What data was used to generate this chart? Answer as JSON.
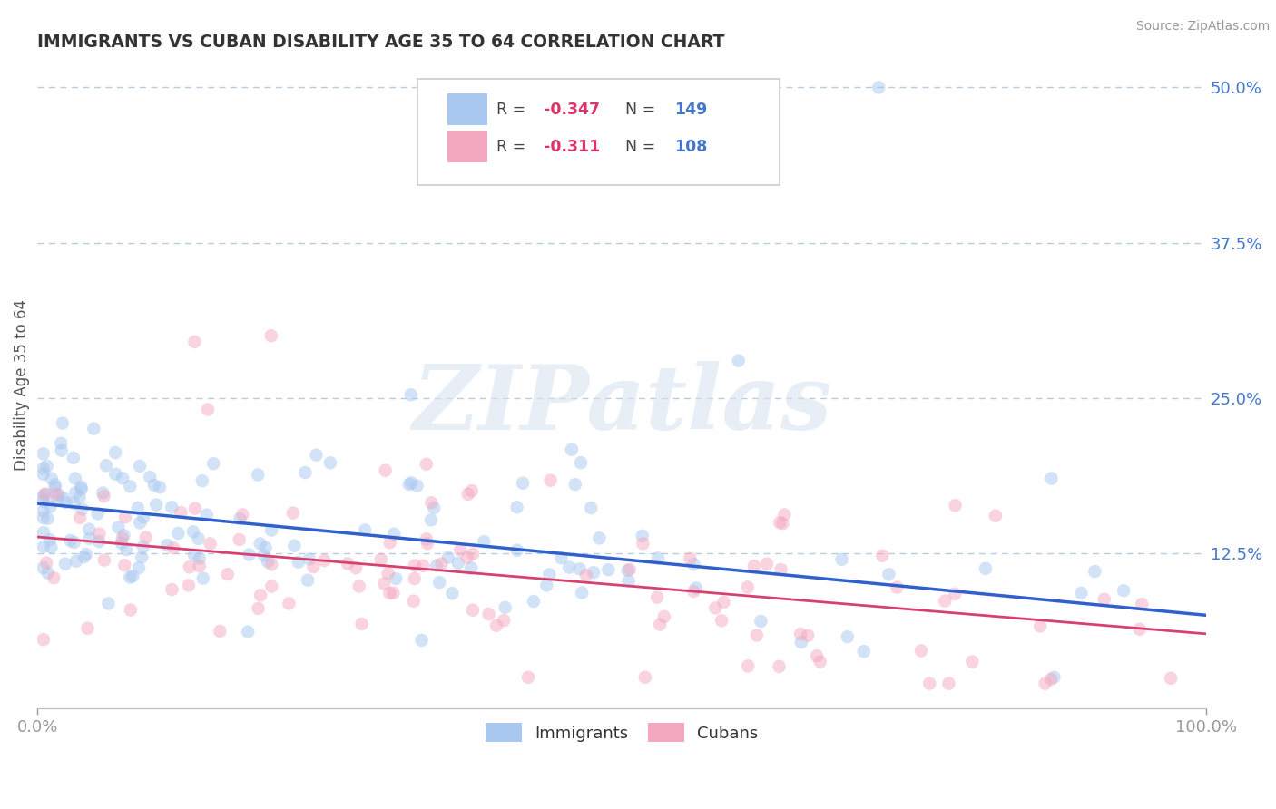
{
  "title": "IMMIGRANTS VS CUBAN DISABILITY AGE 35 TO 64 CORRELATION CHART",
  "source_text": "Source: ZipAtlas.com",
  "ylabel": "Disability Age 35 to 64",
  "xlim": [
    0,
    1.0
  ],
  "ylim": [
    0,
    0.52
  ],
  "ytick_values": [
    0.125,
    0.25,
    0.375,
    0.5
  ],
  "ytick_labels": [
    "12.5%",
    "25.0%",
    "37.5%",
    "50.0%"
  ],
  "immigrants_color": "#a8c8f0",
  "cubans_color": "#f4a8c0",
  "immigrants_line_color": "#3060cc",
  "cubans_line_color": "#d84070",
  "R_immigrants": -0.347,
  "N_immigrants": 149,
  "R_cubans": -0.311,
  "N_cubans": 108,
  "background_color": "#ffffff",
  "grid_color": "#b8cce0",
  "title_color": "#333333",
  "legend_R_color": "#dd3366",
  "legend_N_color": "#4477cc",
  "watermark": "ZIPatlas",
  "marker_size": 110,
  "marker_alpha": 0.5,
  "imm_line_start": 0.165,
  "imm_line_end": 0.075,
  "cub_line_start": 0.138,
  "cub_line_end": 0.06
}
